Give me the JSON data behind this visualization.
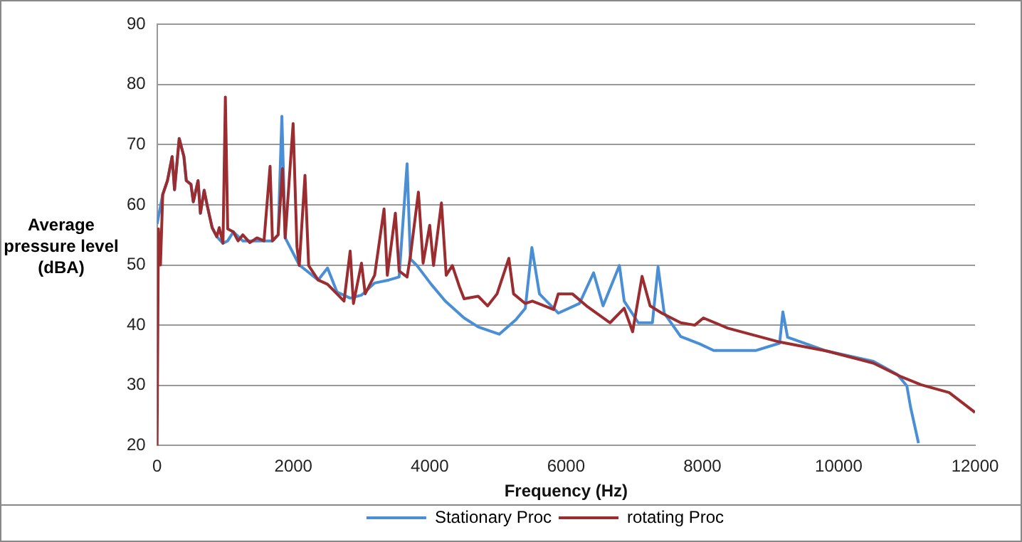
{
  "chart_data": {
    "type": "line",
    "xlabel": "Frequency (Hz)",
    "ylabel": "Average pressure level (dBA)",
    "xlim": [
      0,
      12000
    ],
    "xticks": [
      0,
      2000,
      4000,
      6000,
      8000,
      10000,
      12000
    ],
    "ylim": [
      20,
      90
    ],
    "yticks": [
      20,
      30,
      40,
      50,
      60,
      70,
      80,
      90
    ],
    "grid": "y",
    "legend": "bottom",
    "marker": "none",
    "line_style": "solid",
    "series": [
      {
        "name": "Stationary Proc",
        "color": "#4a8fd6",
        "x": [
          0,
          83,
          152,
          221,
          256,
          325,
          394,
          429,
          497,
          532,
          601,
          636,
          691,
          739,
          808,
          877,
          967,
          1036,
          1119,
          1257,
          1465,
          1693,
          1776,
          1831,
          1880,
          2086,
          2363,
          2501,
          2639,
          2833,
          3000,
          3192,
          3400,
          3551,
          3668,
          3717,
          3813,
          4021,
          4228,
          4504,
          4711,
          5022,
          5264,
          5402,
          5499,
          5610,
          5886,
          6197,
          6404,
          6543,
          6783,
          6853,
          7060,
          7267,
          7350,
          7440,
          7682,
          7958,
          8166,
          8789,
          9133,
          9181,
          9250,
          9824,
          10508,
          10860,
          11000,
          11054,
          11171
        ],
        "values": [
          56.8,
          61.7,
          64,
          68,
          62.5,
          71,
          68,
          64,
          63.4,
          60.5,
          64,
          58.6,
          62.4,
          59.7,
          56.2,
          54.7,
          53.6,
          54,
          55.5,
          54,
          54,
          54,
          55,
          74.7,
          54.5,
          50,
          47.5,
          49.5,
          45.5,
          44.5,
          45,
          47,
          47.5,
          48,
          66.8,
          51,
          49.9,
          46.8,
          44,
          41.2,
          39.7,
          38.5,
          40.9,
          42.8,
          52.9,
          45.2,
          42,
          43.6,
          48.7,
          43.2,
          49.9,
          44,
          40.4,
          40.4,
          49.7,
          42,
          38.1,
          36.9,
          35.8,
          35.8,
          37,
          42.2,
          38,
          35.7,
          34,
          31.8,
          29.9,
          26.4,
          20.4
        ]
      },
      {
        "name": "rotating Proc",
        "color": "#9b2d30",
        "x": [
          0,
          20,
          50,
          83,
          152,
          221,
          256,
          325,
          394,
          429,
          497,
          532,
          601,
          636,
          691,
          739,
          808,
          877,
          912,
          967,
          1002,
          1036,
          1119,
          1188,
          1257,
          1361,
          1465,
          1569,
          1658,
          1693,
          1776,
          1840,
          1880,
          1996,
          2052,
          2086,
          2170,
          2224,
          2363,
          2501,
          2639,
          2743,
          2833,
          2881,
          2999,
          3053,
          3192,
          3330,
          3378,
          3496,
          3551,
          3668,
          3717,
          3834,
          3903,
          4000,
          4056,
          4172,
          4242,
          4332,
          4435,
          4504,
          4711,
          4850,
          4988,
          5161,
          5230,
          5402,
          5506,
          5817,
          5886,
          6093,
          6300,
          6646,
          6853,
          6977,
          7115,
          7233,
          7405,
          7682,
          7889,
          8015,
          8373,
          9133,
          9824,
          10508,
          10923,
          11206,
          11620,
          12000
        ],
        "values": [
          20,
          56,
          50,
          61.7,
          64,
          68,
          62.5,
          71,
          68,
          64,
          63.4,
          60.5,
          64,
          58.6,
          62.4,
          59.7,
          56.2,
          54.7,
          56.2,
          53.6,
          77.9,
          56,
          55.5,
          54,
          55,
          53.7,
          54.5,
          54,
          66.4,
          54,
          55,
          66,
          54.5,
          73.5,
          53,
          49.9,
          64.9,
          49.9,
          47.5,
          46.8,
          45.2,
          44,
          52.3,
          43.6,
          50.3,
          45.2,
          48.3,
          59.3,
          48.3,
          58.6,
          49,
          48,
          51.5,
          62.1,
          50.3,
          56.6,
          49.9,
          60.3,
          48.3,
          49.9,
          46.4,
          44.4,
          44.8,
          43.2,
          45.2,
          51.1,
          45.2,
          43.6,
          44,
          42.6,
          45.2,
          45.2,
          43.2,
          40.4,
          42.8,
          38.9,
          48.1,
          43.2,
          42,
          40.4,
          40,
          41.2,
          39.5,
          37.2,
          35.7,
          33.7,
          31.4,
          30.1,
          28.8,
          25.5
        ]
      }
    ]
  }
}
